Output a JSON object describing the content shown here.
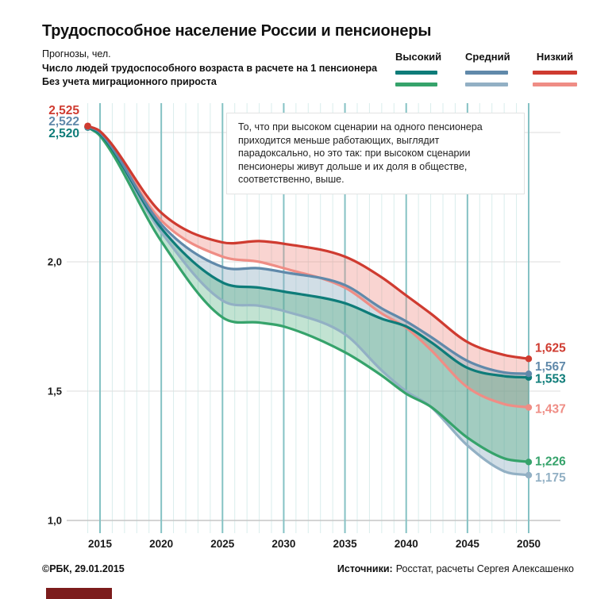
{
  "title": "Трудоспособное население России и пенсионеры",
  "header": {
    "prognosis_label": "Прогнозы, чел.",
    "metric_label": "Число людей трудоспособного возраста в расчете на 1 пенсионера",
    "no_migration_label": "Без учета миграционного прироста"
  },
  "legend": {
    "items": [
      {
        "label": "Высокий",
        "line1_color": "#0e7c79",
        "line2_color": "#36a36b"
      },
      {
        "label": "Средний",
        "line1_color": "#6089aa",
        "line2_color": "#92b0c4"
      },
      {
        "label": "Низкий",
        "line1_color": "#cf3b30",
        "line2_color": "#ef8d85"
      }
    ]
  },
  "annotation": "То, что при высоком сценарии на одного пенсионера приходится меньше работающих, выглядит парадоксально, но это так: при высоком сценарии пенсионеры живут дольше и их доля в обществе, соответственно, выше.",
  "footer": {
    "copyright": "©РБК, 29.01.2015",
    "sources_label": "Источники:",
    "sources_text": "Росстат, расчеты Сергея Алексашенко",
    "brand_bar_color": "#7c1c1c"
  },
  "chart_data": {
    "type": "line",
    "title": "Трудоспособное население России и пенсионеры",
    "ylabel": "Число людей трудоспособного возраста в расчете на 1 пенсионера",
    "x": [
      2014,
      2015,
      2020,
      2025,
      2028,
      2030,
      2035,
      2038,
      2040,
      2042,
      2045,
      2048,
      2050
    ],
    "xlim": [
      2014,
      2050
    ],
    "ylim": [
      1.0,
      2.6
    ],
    "grid": "on",
    "legend_position": "top-right",
    "series": [
      {
        "id": "low_nm",
        "name": "Низкий, без учета миграционного прироста",
        "color": "#ef8d85",
        "values": [
          2.525,
          2.5,
          2.16,
          2.02,
          2.0,
          1.975,
          1.9,
          1.8,
          1.745,
          1.66,
          1.515,
          1.45,
          1.437
        ],
        "end_label": "1,437",
        "end_label_dy": 2
      },
      {
        "id": "mid_nm",
        "name": "Средний, без учета миграционного прироста",
        "color": "#92b0c4",
        "values": [
          2.522,
          2.49,
          2.115,
          1.85,
          1.83,
          1.81,
          1.72,
          1.58,
          1.5,
          1.44,
          1.29,
          1.19,
          1.175
        ],
        "end_label": "1,175",
        "end_label_dy": 3
      },
      {
        "id": "high_nm",
        "name": "Высокий, без учета миграционного прироста",
        "color": "#36a36b",
        "values": [
          2.52,
          2.487,
          2.08,
          1.785,
          1.765,
          1.75,
          1.65,
          1.56,
          1.49,
          1.44,
          1.32,
          1.24,
          1.226
        ],
        "end_label": "1,226",
        "end_label_dy": -1
      },
      {
        "id": "high",
        "name": "Высокий, в расчете на 1 пенсионера",
        "color": "#0e7c79",
        "values": [
          2.52,
          2.495,
          2.13,
          1.92,
          1.9,
          1.885,
          1.84,
          1.78,
          1.75,
          1.69,
          1.59,
          1.558,
          1.553
        ],
        "end_label": "1,553",
        "end_label_dy": 2,
        "start_dot": true
      },
      {
        "id": "mid",
        "name": "Средний, в расчете на 1 пенсионера",
        "color": "#6089aa",
        "values": [
          2.522,
          2.5,
          2.145,
          1.98,
          1.975,
          1.96,
          1.91,
          1.82,
          1.77,
          1.71,
          1.617,
          1.572,
          1.567
        ],
        "end_label": "1,567",
        "end_label_dy": -9,
        "start_dot": true
      },
      {
        "id": "low",
        "name": "Низкий, в расчете на 1 пенсионера",
        "color": "#cf3b30",
        "values": [
          2.525,
          2.505,
          2.19,
          2.075,
          2.08,
          2.07,
          2.02,
          1.94,
          1.87,
          1.8,
          1.69,
          1.64,
          1.625
        ],
        "end_label": "1,625",
        "end_label_dy": -14,
        "start_dot": true
      }
    ],
    "bands": [
      {
        "top_id": "low",
        "bottom_id": "low_nm",
        "color": "#ef8d85",
        "opacity": 0.38
      },
      {
        "top_id": "mid",
        "bottom_id": "mid_nm",
        "color": "#92b0c4",
        "opacity": 0.42
      },
      {
        "top_id": "high",
        "bottom_id": "high_nm",
        "color": "#36a36b",
        "opacity": 0.3
      }
    ],
    "start_labels": [
      {
        "text": "2,525",
        "color": "#cf3b30",
        "dy": -21
      },
      {
        "text": "2,522",
        "color": "#6089aa",
        "dy": -7
      },
      {
        "text": "2,520",
        "color": "#0e7c79",
        "dy": 8
      }
    ],
    "start_label_anchor_value": 2.522,
    "xticks": [
      2015,
      2020,
      2025,
      2030,
      2035,
      2040,
      2045,
      2050
    ],
    "yticks": [
      {
        "v": 2.0,
        "label": "2,0"
      },
      {
        "v": 1.5,
        "label": "1,5"
      },
      {
        "v": 1.0,
        "label": "1,0"
      }
    ],
    "ygrid_values": [
      2.5,
      2.0,
      1.5
    ],
    "baseline_value": 1.0
  }
}
